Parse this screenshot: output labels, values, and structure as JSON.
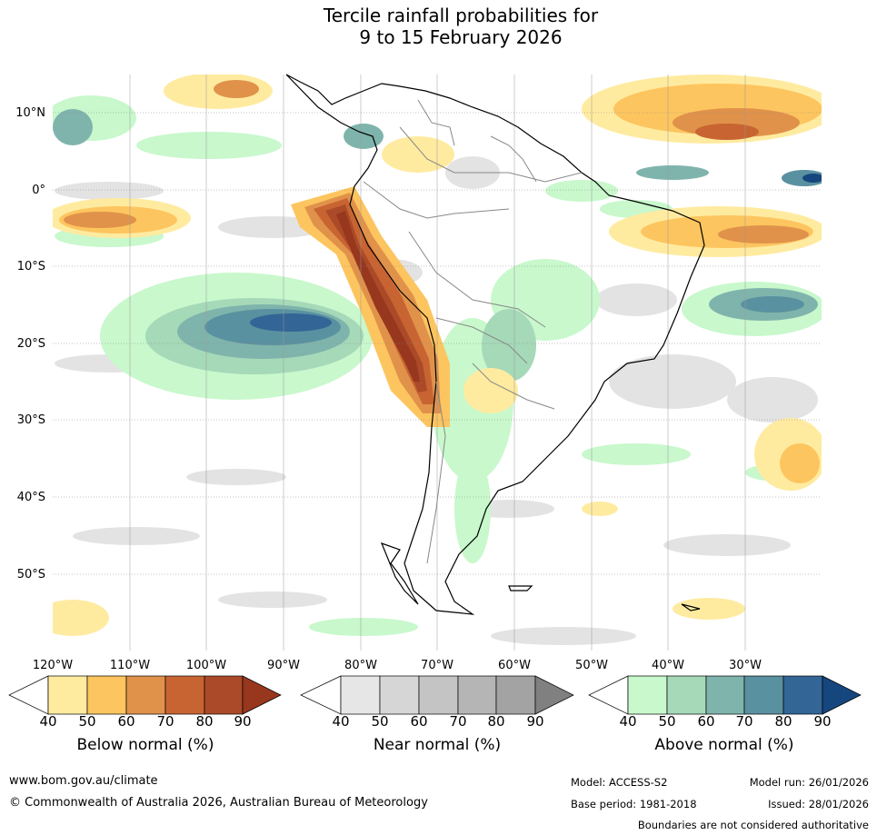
{
  "title": {
    "line1": "Tercile rainfall probabilities for",
    "line2": "9 to 15 February 2026"
  },
  "map": {
    "lat_labels": [
      "10°N",
      "0°",
      "10°S",
      "20°S",
      "30°S",
      "40°S",
      "50°S"
    ],
    "lon_labels": [
      "120°W",
      "110°W",
      "100°W",
      "90°W",
      "80°W",
      "70°W",
      "60°W",
      "50°W",
      "40°W",
      "30°W"
    ]
  },
  "colorbars": [
    {
      "name": "below",
      "title": "Below normal (%)",
      "ticks": [
        "40",
        "50",
        "60",
        "70",
        "80",
        "90"
      ],
      "colors": [
        "#ffffff",
        "#ffeba0",
        "#fdc55f",
        "#e0924a",
        "#c86432",
        "#ab4a28",
        "#96371e"
      ]
    },
    {
      "name": "near",
      "title": "Near normal (%)",
      "ticks": [
        "40",
        "50",
        "60",
        "70",
        "80",
        "90"
      ],
      "colors": [
        "#ffffff",
        "#e6e6e6",
        "#d6d6d6",
        "#c4c4c4",
        "#b5b5b5",
        "#a3a3a3",
        "#808080"
      ]
    },
    {
      "name": "above",
      "title": "Above normal (%)",
      "ticks": [
        "40",
        "50",
        "60",
        "70",
        "80",
        "90"
      ],
      "colors": [
        "#ffffff",
        "#c8f8cc",
        "#a5d9b8",
        "#7fb4ac",
        "#5a91a0",
        "#336596",
        "#16467e"
      ]
    }
  ],
  "footer": {
    "website": "www.bom.gov.au/climate",
    "copyright": "© Commonwealth of Australia 2026, Australian Bureau of Meteorology",
    "model": "Model: ACCESS-S2",
    "base_period": "Base period: 1981-2018",
    "model_run": "Model run: 26/01/2026",
    "issued": "Issued: 28/01/2026",
    "disclaimer": "Boundaries are not considered authoritative"
  }
}
